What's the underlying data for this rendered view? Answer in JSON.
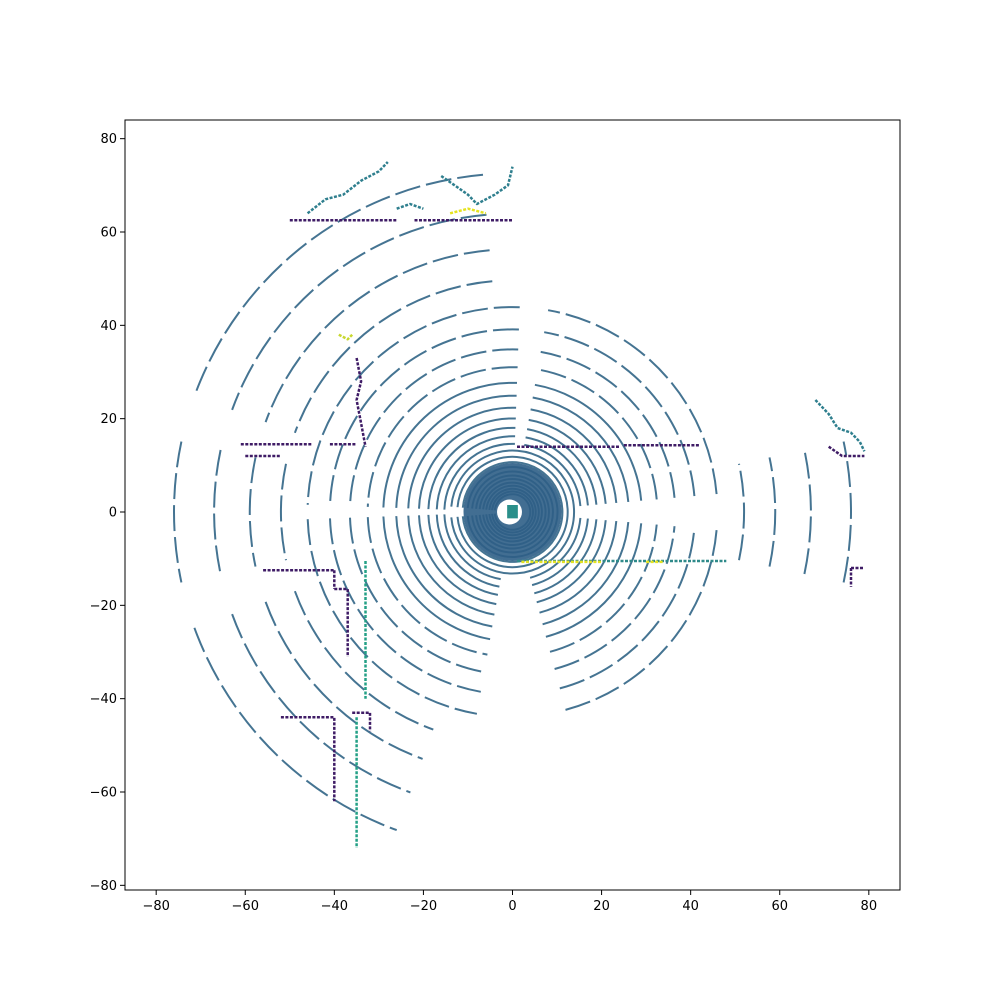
{
  "chart_data": {
    "type": "scatter",
    "title": "",
    "xlabel": "",
    "ylabel": "",
    "xlim": [
      -87,
      87
    ],
    "ylim": [
      -81,
      84
    ],
    "grid": false,
    "legend": "none",
    "colormap": "viridis",
    "x_ticks": [
      -80,
      -60,
      -40,
      -20,
      0,
      20,
      40,
      60,
      80
    ],
    "y_ticks": [
      -80,
      -60,
      -40,
      -20,
      0,
      20,
      40,
      60,
      80
    ],
    "x_tick_labels": [
      "−80",
      "−60",
      "−40",
      "−20",
      "0",
      "20",
      "40",
      "60",
      "80"
    ],
    "y_tick_labels": [
      "−80",
      "−60",
      "−40",
      "−20",
      "0",
      "20",
      "40",
      "60",
      "80"
    ],
    "scan_rings": {
      "center": [
        0,
        0
      ],
      "radii": [
        4,
        4.6,
        5.2,
        5.9,
        6.6,
        7.4,
        8.2,
        9.1,
        10.1,
        11.2,
        12.4,
        13.8,
        15.3,
        17.0,
        18.9,
        21.0,
        23.4,
        26.1,
        29.0,
        32.5,
        36.5,
        41.0,
        46.0,
        52.0,
        59.0,
        67.0,
        76.0
      ],
      "color": "#3b6d8c"
    },
    "segments": [
      {
        "group": "top-wall",
        "color": "#3f1c66",
        "points": [
          [
            -50,
            62.5
          ],
          [
            -26,
            62.5
          ]
        ]
      },
      {
        "group": "top-wall",
        "color": "#3f1c66",
        "points": [
          [
            -22,
            62.5
          ],
          [
            0,
            62.5
          ]
        ]
      },
      {
        "group": "top-vegetation",
        "color": "#2f7f8e",
        "points": [
          [
            -46,
            64
          ],
          [
            -42,
            67
          ],
          [
            -38,
            68
          ],
          [
            -34,
            71
          ],
          [
            -30,
            73
          ],
          [
            -28,
            75
          ]
        ]
      },
      {
        "group": "top-vegetation",
        "color": "#2f7f8e",
        "points": [
          [
            -16,
            72
          ],
          [
            -13,
            70
          ],
          [
            -10,
            68
          ],
          [
            -8,
            66
          ],
          [
            -4,
            68
          ],
          [
            -1,
            70
          ],
          [
            0,
            74
          ]
        ]
      },
      {
        "group": "top-vegetation",
        "color": "#2f7f8e",
        "points": [
          [
            -26,
            65
          ],
          [
            -23,
            66
          ],
          [
            -20,
            65
          ]
        ]
      },
      {
        "group": "top-yellow",
        "color": "#e5e321",
        "points": [
          [
            -14,
            64
          ],
          [
            -10,
            65
          ],
          [
            -6,
            64
          ]
        ]
      },
      {
        "group": "upper-left-wall",
        "color": "#3f1c66",
        "points": [
          [
            -35,
            33
          ],
          [
            -34,
            28
          ],
          [
            -35,
            24
          ],
          [
            -34,
            19
          ],
          [
            -33,
            14
          ]
        ]
      },
      {
        "group": "upper-left-yellow",
        "color": "#c8d830",
        "points": [
          [
            -39,
            38
          ],
          [
            -37,
            37
          ],
          [
            -36,
            38
          ]
        ]
      },
      {
        "group": "left-wall-top",
        "color": "#3f1c66",
        "points": [
          [
            -61,
            14.5
          ],
          [
            -45,
            14.5
          ]
        ]
      },
      {
        "group": "left-wall-top",
        "color": "#3f1c66",
        "points": [
          [
            -41,
            14.5
          ],
          [
            -35,
            14.5
          ]
        ]
      },
      {
        "group": "left-wall-top",
        "color": "#3f1c66",
        "points": [
          [
            -60,
            12
          ],
          [
            -52,
            12
          ]
        ]
      },
      {
        "group": "left-wall-bottom",
        "color": "#3f1c66",
        "points": [
          [
            -56,
            -12.5
          ],
          [
            -40,
            -12.5
          ]
        ]
      },
      {
        "group": "left-wall-bottom",
        "color": "#3f1c66",
        "points": [
          [
            -40,
            -16.5
          ],
          [
            -37,
            -16.5
          ],
          [
            -37,
            -31
          ]
        ]
      },
      {
        "group": "left-wall-bottom",
        "color": "#3f1c66",
        "points": [
          [
            -40,
            -12.5
          ],
          [
            -40,
            -16.5
          ]
        ]
      },
      {
        "group": "lower-left-corner",
        "color": "#3f1c66",
        "points": [
          [
            -52,
            -44
          ],
          [
            -40,
            -44
          ],
          [
            -40,
            -62
          ]
        ]
      },
      {
        "group": "lower-left-corner",
        "color": "#3f1c66",
        "points": [
          [
            -36,
            -43
          ],
          [
            -32,
            -43
          ],
          [
            -32,
            -47
          ]
        ]
      },
      {
        "group": "lower-teal-wall",
        "color": "#24a086",
        "points": [
          [
            -33,
            -10.5
          ],
          [
            -33,
            -40
          ]
        ]
      },
      {
        "group": "lower-teal-wall",
        "color": "#24a086",
        "points": [
          [
            -35,
            -44
          ],
          [
            -35,
            -72
          ]
        ]
      },
      {
        "group": "right-wall-top",
        "color": "#3f1c66",
        "points": [
          [
            25,
            14.3
          ],
          [
            42,
            14.3
          ]
        ]
      },
      {
        "group": "right-wall-top",
        "color": "#3f1c66",
        "points": [
          [
            1,
            14
          ],
          [
            24,
            14
          ]
        ]
      },
      {
        "group": "right-wall-bottom",
        "color": "#2f8a8a",
        "points": [
          [
            1,
            -10.5
          ],
          [
            48,
            -10.5
          ]
        ]
      },
      {
        "group": "right-yellow",
        "color": "#e5e321",
        "points": [
          [
            2,
            -10.7
          ],
          [
            20,
            -10.7
          ]
        ]
      },
      {
        "group": "right-yellow",
        "color": "#e5e321",
        "points": [
          [
            30,
            -10.7
          ],
          [
            34,
            -10.7
          ]
        ]
      },
      {
        "group": "far-right-vegetation",
        "color": "#2f7f8e",
        "points": [
          [
            68,
            24
          ],
          [
            71,
            21
          ],
          [
            73,
            18
          ],
          [
            76,
            17
          ],
          [
            78,
            15
          ],
          [
            79,
            13
          ]
        ]
      },
      {
        "group": "far-right-purple",
        "color": "#3f1c66",
        "points": [
          [
            71,
            14
          ],
          [
            74,
            12
          ],
          [
            79,
            12
          ]
        ]
      },
      {
        "group": "far-right-purple",
        "color": "#3f1c66",
        "points": [
          [
            76,
            -12
          ],
          [
            76,
            -16
          ]
        ]
      },
      {
        "group": "far-right-purple",
        "color": "#3f1c66",
        "points": [
          [
            76,
            -12
          ],
          [
            79,
            -12
          ]
        ]
      }
    ],
    "blob": {
      "center": [
        0,
        0
      ],
      "radius": 11,
      "hole_radius": 2.8,
      "color": "#2e5e86"
    }
  }
}
